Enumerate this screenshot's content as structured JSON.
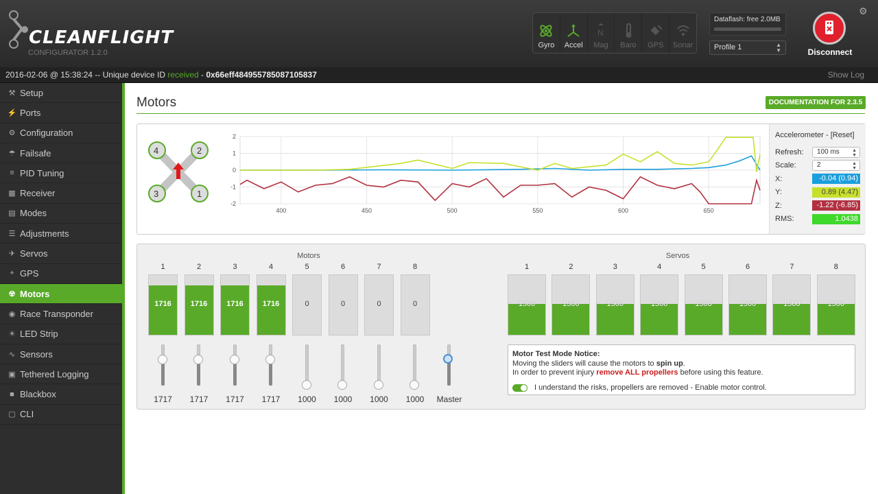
{
  "app": {
    "name": "CLEANFLIGHT",
    "subtitle": "CONFIGURATOR 1.2.0"
  },
  "header": {
    "sensors": [
      {
        "label": "Gyro",
        "active": true,
        "icon": "gyro-icon"
      },
      {
        "label": "Accel",
        "active": true,
        "icon": "accel-icon"
      },
      {
        "label": "Mag",
        "active": false,
        "icon": "mag-icon"
      },
      {
        "label": "Baro",
        "active": false,
        "icon": "baro-icon"
      },
      {
        "label": "GPS",
        "active": false,
        "icon": "gps-icon"
      },
      {
        "label": "Sonar",
        "active": false,
        "icon": "sonar-icon"
      }
    ],
    "dataflash": "Dataflash: free 2.0MB",
    "profile": "Profile 1",
    "disconnect": "Disconnect"
  },
  "status": {
    "timestamp": "2016-02-06 @ 15:38:24",
    "sep": " -- Unique device ID ",
    "received": "received",
    "dash": " - ",
    "device_id": "0x66eff484955785087105837",
    "show_log": "Show Log"
  },
  "sidebar": {
    "items": [
      {
        "label": "Setup",
        "icon": "wrench-icon",
        "glyph": "⚒"
      },
      {
        "label": "Ports",
        "icon": "plug-icon",
        "glyph": "⚡"
      },
      {
        "label": "Configuration",
        "icon": "gear-icon",
        "glyph": "⚙"
      },
      {
        "label": "Failsafe",
        "icon": "parachute-icon",
        "glyph": "☂"
      },
      {
        "label": "PID Tuning",
        "icon": "tuning-icon",
        "glyph": "≡"
      },
      {
        "label": "Receiver",
        "icon": "receiver-icon",
        "glyph": "▦"
      },
      {
        "label": "Modes",
        "icon": "modes-icon",
        "glyph": "▤"
      },
      {
        "label": "Adjustments",
        "icon": "adjustments-icon",
        "glyph": "☰"
      },
      {
        "label": "Servos",
        "icon": "servo-icon",
        "glyph": "✈"
      },
      {
        "label": "GPS",
        "icon": "globe-icon",
        "glyph": "⌖"
      },
      {
        "label": "Motors",
        "icon": "motor-icon",
        "glyph": "☢",
        "active": true
      },
      {
        "label": "Race Transponder",
        "icon": "transponder-icon",
        "glyph": "◉"
      },
      {
        "label": "LED Strip",
        "icon": "led-icon",
        "glyph": "☀"
      },
      {
        "label": "Sensors",
        "icon": "sensors-icon",
        "glyph": "∿"
      },
      {
        "label": "Tethered Logging",
        "icon": "logging-icon",
        "glyph": "▣"
      },
      {
        "label": "Blackbox",
        "icon": "blackbox-icon",
        "glyph": "■"
      },
      {
        "label": "CLI",
        "icon": "terminal-icon",
        "glyph": "▢"
      }
    ]
  },
  "page": {
    "title": "Motors",
    "doc_button": "DOCUMENTATION FOR 2.3.5"
  },
  "quad_labels": [
    "4",
    "2",
    "3",
    "1"
  ],
  "accel_panel": {
    "title": "Accelerometer - [Reset]",
    "refresh_label": "Refresh:",
    "refresh": "100 ms",
    "scale_label": "Scale:",
    "scale": "2",
    "x_label": "X:",
    "x": "-0.04 (0.94)",
    "y_label": "Y:",
    "y": "0.89 (4.47)",
    "z_label": "Z:",
    "z": "-1.22 (-6.85)",
    "rms_label": "RMS:",
    "rms": "1.0438",
    "colors": {
      "x": "#1a9fdd",
      "y": "#c8e02c",
      "z": "#b23040",
      "rms": "#3fd82b"
    }
  },
  "chart_data": {
    "type": "line",
    "x_range": [
      376,
      680
    ],
    "ylim": [
      -2,
      2
    ],
    "x_ticks": [
      "400",
      "450",
      "500",
      "550",
      "600",
      "650"
    ],
    "y_ticks": [
      "2",
      "1",
      "0",
      "-1",
      "-2"
    ],
    "grid": true,
    "series": [
      {
        "name": "X",
        "color": "#1a9fdd",
        "x": [
          376,
          420,
          460,
          500,
          540,
          560,
          580,
          600,
          620,
          640,
          650,
          660,
          668,
          675,
          680
        ],
        "y": [
          0.0,
          0.0,
          0.02,
          0.0,
          0.05,
          0.1,
          0.0,
          0.05,
          0.05,
          0.1,
          0.15,
          0.3,
          0.55,
          0.85,
          0.0
        ]
      },
      {
        "name": "Y",
        "color": "#c8e02c",
        "x": [
          376,
          420,
          440,
          470,
          480,
          500,
          510,
          530,
          550,
          560,
          570,
          580,
          590,
          600,
          610,
          620,
          630,
          640,
          650,
          655,
          660,
          665,
          672,
          676,
          678,
          680
        ],
        "y": [
          0.0,
          0.0,
          0.05,
          0.4,
          0.6,
          0.1,
          0.45,
          0.4,
          0.0,
          0.4,
          0.1,
          0.2,
          0.3,
          0.95,
          0.5,
          1.1,
          0.4,
          0.3,
          0.5,
          1.2,
          1.95,
          1.95,
          1.95,
          1.95,
          -0.1,
          0.95
        ]
      },
      {
        "name": "Z",
        "color": "#b23040",
        "x": [
          376,
          380,
          390,
          400,
          410,
          420,
          430,
          440,
          450,
          460,
          470,
          480,
          490,
          500,
          510,
          520,
          530,
          540,
          550,
          560,
          570,
          580,
          590,
          600,
          610,
          620,
          630,
          640,
          645,
          650,
          660,
          670,
          675,
          678,
          680
        ],
        "y": [
          -0.85,
          -0.6,
          -1.1,
          -0.7,
          -1.3,
          -0.9,
          -0.8,
          -0.4,
          -0.9,
          -1.0,
          -0.6,
          -0.7,
          -1.8,
          -0.8,
          -1.0,
          -0.5,
          -1.6,
          -0.9,
          -0.9,
          -0.8,
          -1.6,
          -1.0,
          -1.2,
          -1.7,
          -0.4,
          -0.9,
          -1.1,
          -0.8,
          -1.3,
          -2.0,
          -2.0,
          -2.0,
          -2.0,
          -0.6,
          -1.2
        ]
      }
    ]
  },
  "motors": {
    "group_label": "Motors",
    "items": [
      {
        "num": "1",
        "value": "1716",
        "level": 0.716,
        "slider": "1717"
      },
      {
        "num": "2",
        "value": "1716",
        "level": 0.716,
        "slider": "1717"
      },
      {
        "num": "3",
        "value": "1716",
        "level": 0.716,
        "slider": "1717"
      },
      {
        "num": "4",
        "value": "1716",
        "level": 0.716,
        "slider": "1717"
      },
      {
        "num": "5",
        "value": "0",
        "level": 0,
        "slider": "1000"
      },
      {
        "num": "6",
        "value": "0",
        "level": 0,
        "slider": "1000"
      },
      {
        "num": "7",
        "value": "0",
        "level": 0,
        "slider": "1000"
      },
      {
        "num": "8",
        "value": "0",
        "level": 0,
        "slider": "1000"
      }
    ],
    "master_label": "Master",
    "master_level": 0.717
  },
  "servos": {
    "group_label": "Servos",
    "items": [
      {
        "num": "1",
        "value": "1500",
        "level": 0.5
      },
      {
        "num": "2",
        "value": "1500",
        "level": 0.5
      },
      {
        "num": "3",
        "value": "1500",
        "level": 0.5
      },
      {
        "num": "4",
        "value": "1500",
        "level": 0.5
      },
      {
        "num": "5",
        "value": "1500",
        "level": 0.5
      },
      {
        "num": "6",
        "value": "1500",
        "level": 0.5
      },
      {
        "num": "7",
        "value": "1500",
        "level": 0.5
      },
      {
        "num": "8",
        "value": "1500",
        "level": 0.5
      }
    ]
  },
  "notice": {
    "title": "Motor Test Mode Notice:",
    "line1a": "Moving the sliders will cause the motors to ",
    "line1b": "spin up",
    "line1c": ".",
    "line2a": "In order to prevent injury ",
    "line2b": "remove ALL propellers",
    "line2c": " before using this feature.",
    "agree": "I understand the risks, propellers are removed - Enable motor control."
  }
}
